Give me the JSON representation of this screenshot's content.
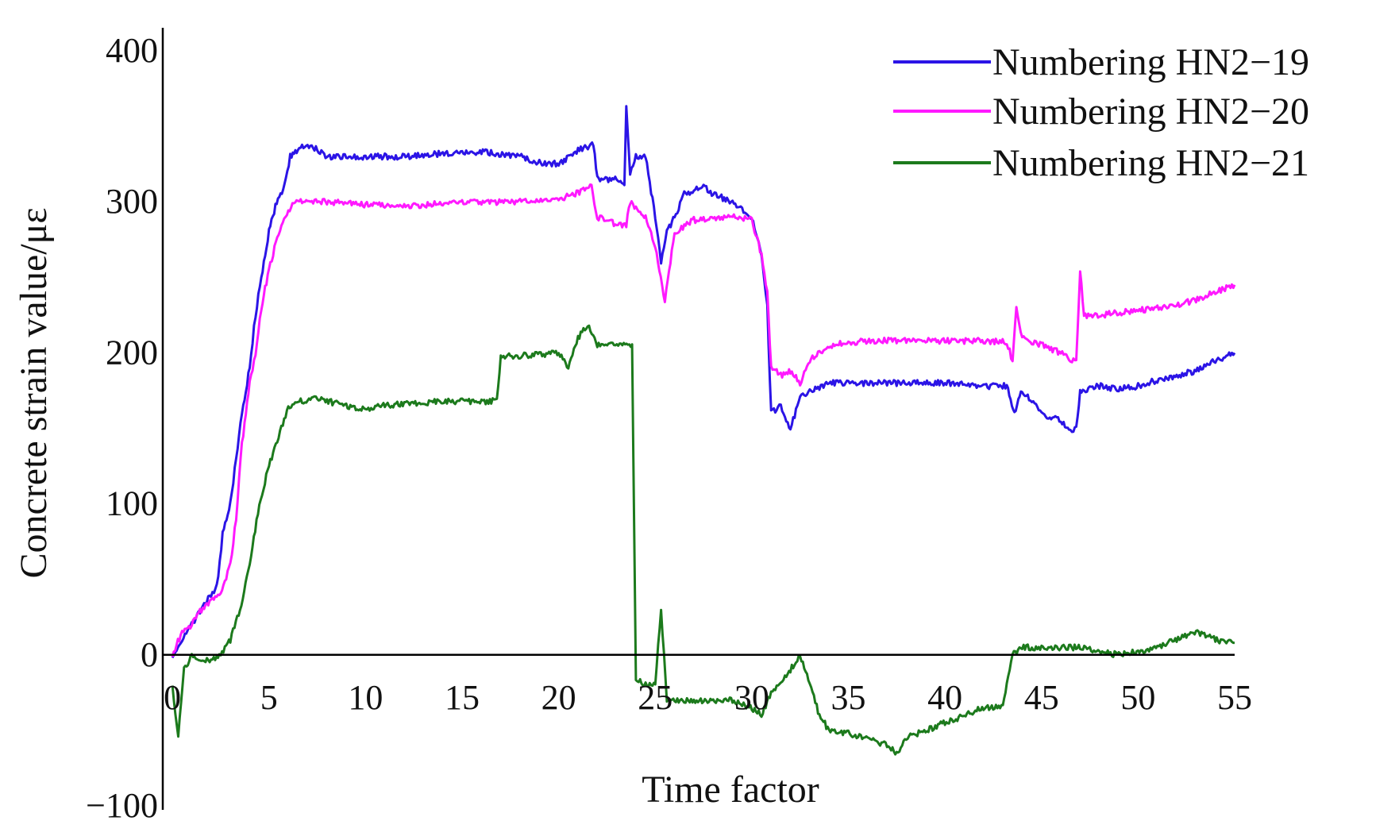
{
  "chart_data": {
    "type": "line",
    "title": "",
    "xlabel": "Time factor",
    "ylabel": "Concrete strain value/με",
    "xlim": [
      -0.5,
      55
    ],
    "ylim": [
      -100,
      410
    ],
    "x_ticks": [
      0,
      5,
      10,
      15,
      20,
      25,
      30,
      35,
      40,
      45,
      50,
      55
    ],
    "x_tick_labels": [
      "0",
      "5",
      "10",
      "15",
      "20",
      "25",
      "30",
      "35",
      "40",
      "45",
      "50",
      "55"
    ],
    "y_ticks": [
      -100,
      0,
      100,
      200,
      300,
      400
    ],
    "y_tick_labels": [
      "−100",
      "0",
      "100",
      "200",
      "300",
      "400"
    ],
    "legend_position": "top-right",
    "zero_line": true,
    "series": [
      {
        "name": "Numbering HN2−19",
        "color": "#2b14e6",
        "points": [
          [
            0,
            0
          ],
          [
            0.5,
            10
          ],
          [
            1,
            20
          ],
          [
            1.5,
            30
          ],
          [
            2,
            40
          ],
          [
            2.3,
            45
          ],
          [
            2.6,
            80
          ],
          [
            3,
            100
          ],
          [
            3.3,
            130
          ],
          [
            3.6,
            160
          ],
          [
            4,
            190
          ],
          [
            4.3,
            225
          ],
          [
            4.6,
            250
          ],
          [
            5,
            280
          ],
          [
            5.4,
            300
          ],
          [
            5.8,
            310
          ],
          [
            6.1,
            330
          ],
          [
            6.5,
            335
          ],
          [
            7,
            338
          ],
          [
            7.5,
            335
          ],
          [
            8,
            330
          ],
          [
            10,
            330
          ],
          [
            12,
            330
          ],
          [
            14,
            332
          ],
          [
            16,
            333
          ],
          [
            18,
            330
          ],
          [
            19,
            326
          ],
          [
            20,
            325
          ],
          [
            21,
            334
          ],
          [
            21.8,
            338
          ],
          [
            22,
            315
          ],
          [
            23,
            315
          ],
          [
            23.4,
            310
          ],
          [
            23.5,
            365
          ],
          [
            23.7,
            320
          ],
          [
            24,
            330
          ],
          [
            24.5,
            330
          ],
          [
            25,
            290
          ],
          [
            25.3,
            260
          ],
          [
            25.6,
            280
          ],
          [
            26,
            290
          ],
          [
            26.5,
            305
          ],
          [
            27,
            308
          ],
          [
            27.5,
            310
          ],
          [
            28,
            305
          ],
          [
            29,
            300
          ],
          [
            30,
            290
          ],
          [
            30.5,
            265
          ],
          [
            30.8,
            230
          ],
          [
            31,
            160
          ],
          [
            31.5,
            165
          ],
          [
            32,
            150
          ],
          [
            32.5,
            170
          ],
          [
            33,
            175
          ],
          [
            34,
            180
          ],
          [
            36,
            180
          ],
          [
            38,
            180
          ],
          [
            40,
            180
          ],
          [
            42,
            178
          ],
          [
            43.2,
            178
          ],
          [
            43.6,
            160
          ],
          [
            44,
            175
          ],
          [
            45,
            160
          ],
          [
            46,
            155
          ],
          [
            46.5,
            148
          ],
          [
            46.8,
            150
          ],
          [
            47,
            175
          ],
          [
            48,
            178
          ],
          [
            49,
            176
          ],
          [
            50,
            178
          ],
          [
            51,
            182
          ],
          [
            52,
            185
          ],
          [
            53,
            188
          ],
          [
            54,
            195
          ],
          [
            55,
            200
          ]
        ]
      },
      {
        "name": "Numbering HN2−20",
        "color": "#ff19ff",
        "points": [
          [
            0,
            0
          ],
          [
            0.5,
            15
          ],
          [
            1,
            20
          ],
          [
            1.5,
            30
          ],
          [
            2,
            35
          ],
          [
            2.5,
            40
          ],
          [
            3,
            60
          ],
          [
            3.3,
            90
          ],
          [
            3.6,
            140
          ],
          [
            4,
            180
          ],
          [
            4.3,
            200
          ],
          [
            4.6,
            230
          ],
          [
            5,
            255
          ],
          [
            5.5,
            280
          ],
          [
            6,
            295
          ],
          [
            6.5,
            300
          ],
          [
            8,
            300
          ],
          [
            10,
            298
          ],
          [
            12,
            297
          ],
          [
            14,
            299
          ],
          [
            16,
            300
          ],
          [
            18,
            300
          ],
          [
            20,
            302
          ],
          [
            21,
            306
          ],
          [
            21.7,
            310
          ],
          [
            22,
            290
          ],
          [
            23,
            285
          ],
          [
            23.5,
            285
          ],
          [
            23.7,
            300
          ],
          [
            24,
            295
          ],
          [
            24.5,
            290
          ],
          [
            25,
            270
          ],
          [
            25.5,
            235
          ],
          [
            26,
            280
          ],
          [
            27,
            288
          ],
          [
            28,
            288
          ],
          [
            29,
            290
          ],
          [
            30,
            288
          ],
          [
            30.5,
            265
          ],
          [
            30.8,
            240
          ],
          [
            31,
            190
          ],
          [
            31.5,
            185
          ],
          [
            32,
            188
          ],
          [
            32.5,
            180
          ],
          [
            33,
            195
          ],
          [
            34,
            205
          ],
          [
            36,
            208
          ],
          [
            38,
            208
          ],
          [
            40,
            208
          ],
          [
            42,
            208
          ],
          [
            43.2,
            207
          ],
          [
            43.5,
            195
          ],
          [
            43.7,
            230
          ],
          [
            44,
            210
          ],
          [
            45,
            205
          ],
          [
            46,
            200
          ],
          [
            46.5,
            195
          ],
          [
            46.8,
            195
          ],
          [
            47,
            255
          ],
          [
            47.2,
            225
          ],
          [
            48,
            225
          ],
          [
            50,
            228
          ],
          [
            51,
            230
          ],
          [
            52,
            232
          ],
          [
            53,
            235
          ],
          [
            54,
            240
          ],
          [
            55,
            245
          ]
        ]
      },
      {
        "name": "Numbering HN2−21",
        "color": "#1c7a1c",
        "points": [
          [
            0,
            -20
          ],
          [
            0.3,
            -55
          ],
          [
            0.6,
            -10
          ],
          [
            1,
            0
          ],
          [
            1.5,
            -5
          ],
          [
            2,
            -3
          ],
          [
            2.5,
            0
          ],
          [
            3,
            10
          ],
          [
            3.5,
            30
          ],
          [
            4,
            60
          ],
          [
            4.5,
            100
          ],
          [
            5,
            125
          ],
          [
            5.5,
            145
          ],
          [
            6,
            163
          ],
          [
            6.5,
            168
          ],
          [
            7,
            168
          ],
          [
            7.5,
            170
          ],
          [
            8,
            168
          ],
          [
            9,
            165
          ],
          [
            10,
            163
          ],
          [
            11,
            165
          ],
          [
            12,
            166
          ],
          [
            14,
            168
          ],
          [
            16,
            168
          ],
          [
            16.8,
            168
          ],
          [
            17,
            198
          ],
          [
            18,
            198
          ],
          [
            20,
            200
          ],
          [
            20.5,
            190
          ],
          [
            21,
            210
          ],
          [
            21.5,
            218
          ],
          [
            22,
            205
          ],
          [
            23.8,
            205
          ],
          [
            24,
            -15
          ],
          [
            24.5,
            -20
          ],
          [
            25,
            -20
          ],
          [
            25.3,
            30
          ],
          [
            25.6,
            -30
          ],
          [
            26,
            -30
          ],
          [
            28,
            -30
          ],
          [
            29,
            -30
          ],
          [
            30,
            -35
          ],
          [
            30.5,
            -40
          ],
          [
            31,
            -25
          ],
          [
            32,
            -10
          ],
          [
            32.5,
            0
          ],
          [
            33,
            -20
          ],
          [
            33.5,
            -40
          ],
          [
            34,
            -50
          ],
          [
            35,
            -52
          ],
          [
            36,
            -55
          ],
          [
            37,
            -60
          ],
          [
            37.5,
            -65
          ],
          [
            38,
            -55
          ],
          [
            40,
            -45
          ],
          [
            41,
            -40
          ],
          [
            42,
            -35
          ],
          [
            43,
            -35
          ],
          [
            43.2,
            -20
          ],
          [
            43.5,
            0
          ],
          [
            44,
            5
          ],
          [
            45,
            5
          ],
          [
            46,
            5
          ],
          [
            47,
            5
          ],
          [
            48,
            2
          ],
          [
            49,
            0
          ],
          [
            50,
            2
          ],
          [
            51,
            5
          ],
          [
            52,
            10
          ],
          [
            53,
            15
          ],
          [
            54,
            10
          ],
          [
            55,
            8
          ]
        ]
      }
    ]
  }
}
